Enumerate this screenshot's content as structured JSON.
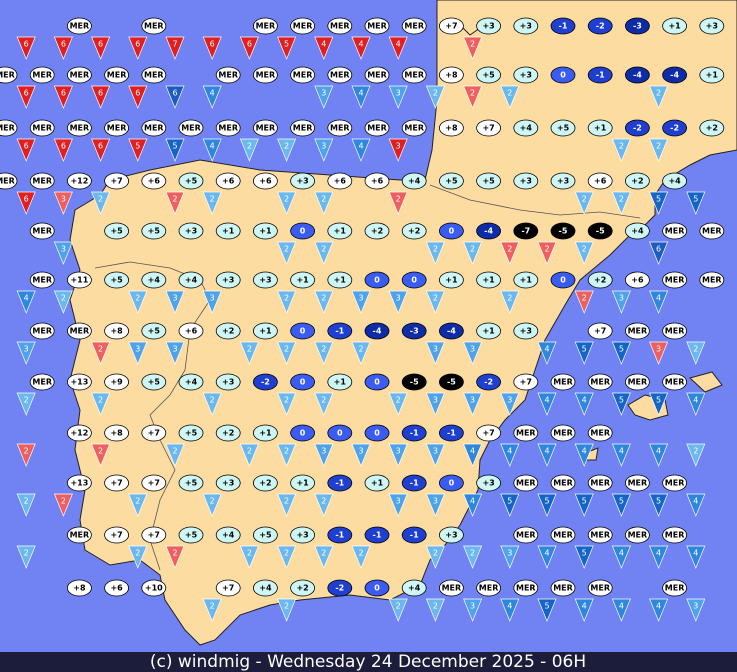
{
  "map": {
    "temperature_rows": [
      [
        null,
        null,
        "MER",
        null,
        "MER",
        null,
        null,
        "MER",
        "MER",
        "MER",
        "MER",
        "MER",
        "+7",
        "+3",
        "+3",
        "-1",
        "-2",
        "-3",
        "+1",
        "+3"
      ],
      [
        "MER",
        "MER",
        "MER",
        "MER",
        "MER",
        null,
        "MER",
        "MER",
        "MER",
        "MER",
        "MER",
        "MER",
        "+8",
        "+5",
        "+3",
        "0",
        "-1",
        "-4",
        "-4",
        "+1"
      ],
      [
        "MER",
        "MER",
        "MER",
        "MER",
        "MER",
        "MER",
        "MER",
        "MER",
        "MER",
        "MER",
        "MER",
        "MER",
        "+8",
        "+7",
        "+4",
        "+5",
        "+1",
        "-2",
        "-2",
        "+2"
      ],
      [
        "MER",
        "MER",
        "+12",
        "+7",
        "+6",
        "+5",
        "+6",
        "+6",
        "+3",
        "+6",
        "+6",
        "+4",
        "+5",
        "+5",
        "+3",
        "+3",
        "+6",
        "+2",
        "+4",
        null
      ],
      [
        null,
        "MER",
        null,
        "+5",
        "+5",
        "+3",
        "+1",
        "+1",
        "0",
        "+1",
        "+2",
        "+2",
        "0",
        "-4",
        "-7",
        "-5",
        "-5",
        "+4",
        "MER",
        "MER"
      ],
      [
        null,
        "MER",
        "+11",
        "+5",
        "+4",
        "+4",
        "+3",
        "+3",
        "+1",
        "+1",
        "0",
        "0",
        "+1",
        "+1",
        "+1",
        "0",
        "+2",
        "+6",
        "MER",
        "MER"
      ],
      [
        null,
        "MER",
        "MER",
        "+8",
        "+5",
        "+6",
        "+2",
        "+1",
        "0",
        "-1",
        "-4",
        "-3",
        "-4",
        "+1",
        "+3",
        null,
        "+7",
        "MER",
        "MER",
        null
      ],
      [
        null,
        "MER",
        "+13",
        "+9",
        "+5",
        "+4",
        "+3",
        "-2",
        "0",
        "+1",
        "0",
        "-5",
        "-5",
        "-2",
        "+7",
        "MER",
        "MER",
        "MER",
        "MER",
        null
      ],
      [
        null,
        null,
        "+12",
        "+8",
        "+7",
        "+5",
        "+2",
        "+1",
        "0",
        "0",
        "0",
        "-1",
        "-1",
        "+7",
        "MER",
        "MER",
        "MER",
        null,
        null,
        null
      ],
      [
        null,
        null,
        "+13",
        "+7",
        "+7",
        "+5",
        "+3",
        "+2",
        "+1",
        "-1",
        "+1",
        "-1",
        "0",
        "+3",
        "MER",
        "MER",
        "MER",
        "MER",
        "MER",
        null
      ],
      [
        null,
        null,
        "MER",
        "+7",
        "+7",
        "+5",
        "+4",
        "+5",
        "+3",
        "-1",
        "-1",
        "-1",
        "+3",
        null,
        "MER",
        "MER",
        "MER",
        "MER",
        "MER",
        null
      ],
      [
        null,
        null,
        "+8",
        "+6",
        "+10",
        null,
        "+7",
        "+4",
        "+2",
        "-2",
        "0",
        "+4",
        "MER",
        "MER",
        "MER",
        "MER",
        "MER",
        null,
        "MER",
        null
      ]
    ],
    "wind_rows": [
      [
        {
          "value": 6,
          "color": "#e02020"
        },
        {
          "value": 6,
          "color": "#e02020"
        },
        {
          "value": 6,
          "color": "#e02020"
        },
        {
          "value": 6,
          "color": "#e02020"
        },
        {
          "value": 6,
          "color": "#e02020"
        },
        {
          "value": 7,
          "color": "#e02020"
        },
        {
          "value": 6,
          "color": "#e02020"
        },
        {
          "value": 6,
          "color": "#e02020"
        },
        {
          "value": 5,
          "color": "#e02020"
        },
        {
          "value": 4,
          "color": "#e02020"
        },
        {
          "value": 4,
          "color": "#e02020"
        },
        {
          "value": 4,
          "color": "#e02020"
        },
        null,
        {
          "value": 2,
          "color": "#ee6060"
        },
        null,
        null,
        null,
        null,
        null,
        null
      ],
      [
        {
          "value": 6,
          "color": "#e02020"
        },
        {
          "value": 6,
          "color": "#e02020"
        },
        {
          "value": 6,
          "color": "#e02020"
        },
        {
          "value": 6,
          "color": "#e02020"
        },
        {
          "value": 6,
          "color": "#e02020"
        },
        6,
        4,
        null,
        null,
        3,
        4,
        3,
        2,
        {
          "value": 2,
          "color": "#ee6060"
        },
        2,
        null,
        null,
        null,
        2,
        null
      ],
      [
        {
          "value": 6,
          "color": "#e02020"
        },
        {
          "value": 6,
          "color": "#e02020"
        },
        {
          "value": 6,
          "color": "#e02020"
        },
        {
          "value": 6,
          "color": "#e02020"
        },
        {
          "value": 5,
          "color": "#e02020"
        },
        5,
        4,
        2,
        2,
        3,
        4,
        {
          "value": 3,
          "color": "#e02020"
        },
        null,
        null,
        null,
        null,
        null,
        2,
        2,
        null
      ],
      [
        {
          "value": 6,
          "color": "#e02020"
        },
        {
          "value": 6,
          "color": "#e02020"
        },
        {
          "value": 3,
          "color": "#ee6060"
        },
        2,
        null,
        {
          "value": 2,
          "color": "#ee6060"
        },
        2,
        null,
        2,
        2,
        null,
        {
          "value": 2,
          "color": "#ee6060"
        },
        null,
        null,
        null,
        null,
        2,
        2,
        5,
        5
      ],
      [
        4,
        null,
        3,
        null,
        null,
        null,
        null,
        null,
        2,
        2,
        null,
        null,
        2,
        2,
        {
          "value": 2,
          "color": "#ee6060"
        },
        {
          "value": 2,
          "color": "#ee6060"
        },
        2,
        null,
        6,
        null
      ],
      [
        4,
        4,
        2,
        null,
        2,
        3,
        3,
        null,
        2,
        2,
        3,
        3,
        2,
        null,
        2,
        null,
        {
          "value": 2,
          "color": "#ee6060"
        },
        3,
        4,
        null
      ],
      [
        4,
        3,
        null,
        {
          "value": 2,
          "color": "#ee6060"
        },
        3,
        3,
        null,
        2,
        2,
        2,
        2,
        null,
        3,
        3,
        null,
        4,
        5,
        5,
        {
          "value": 3,
          "color": "#ee6060"
        },
        2
      ],
      [
        3,
        2,
        null,
        2,
        null,
        null,
        2,
        null,
        2,
        2,
        null,
        2,
        3,
        3,
        3,
        4,
        4,
        5,
        5,
        4
      ],
      [
        3,
        {
          "value": 2,
          "color": "#ee6060"
        },
        null,
        {
          "value": 2,
          "color": "#ee6060"
        },
        null,
        2,
        null,
        2,
        2,
        3,
        3,
        3,
        3,
        4,
        4,
        4,
        4,
        4,
        4,
        2
      ],
      [
        5,
        2,
        {
          "value": 2,
          "color": "#ee6060"
        },
        null,
        2,
        null,
        2,
        null,
        2,
        2,
        null,
        3,
        3,
        4,
        5,
        5,
        5,
        5,
        5,
        4
      ],
      [
        3,
        2,
        null,
        null,
        2,
        {
          "value": 2,
          "color": "#ee6060"
        },
        null,
        2,
        2,
        2,
        2,
        null,
        2,
        2,
        3,
        4,
        5,
        4,
        4,
        4
      ],
      [
        null,
        null,
        null,
        null,
        null,
        null,
        2,
        null,
        2,
        null,
        null,
        2,
        2,
        3,
        4,
        5,
        4,
        4,
        4,
        3
      ]
    ],
    "footer": "(c) windmig - Wednesday 24 December 2025 - 06H"
  }
}
